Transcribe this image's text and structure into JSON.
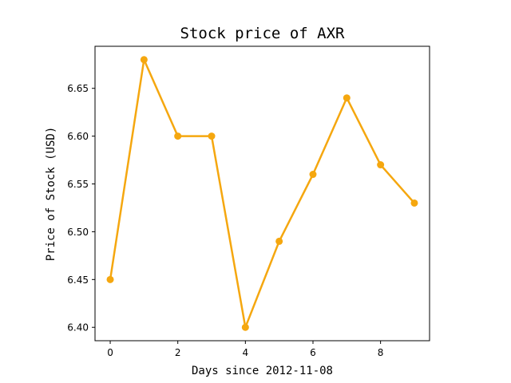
{
  "chart_data": {
    "type": "line",
    "title": "Stock price of AXR",
    "xlabel": "Days since 2012-11-08",
    "ylabel": "Price of Stock (USD)",
    "x": [
      0,
      1,
      2,
      3,
      4,
      5,
      6,
      7,
      8,
      9
    ],
    "series": [
      {
        "values": [
          6.45,
          6.68,
          6.6,
          6.6,
          6.4,
          6.49,
          6.56,
          6.64,
          6.57,
          6.53
        ]
      }
    ],
    "xlim": [
      -0.45,
      9.45
    ],
    "ylim": [
      6.386,
      6.694
    ],
    "xticks": [
      "0",
      "2",
      "4",
      "6",
      "8"
    ],
    "yticks": [
      "6.40",
      "6.45",
      "6.50",
      "6.55",
      "6.60",
      "6.65"
    ],
    "grid": false,
    "colors": {
      "line": "#f5a70f",
      "axes": "#000000",
      "background": "#ffffff"
    }
  }
}
